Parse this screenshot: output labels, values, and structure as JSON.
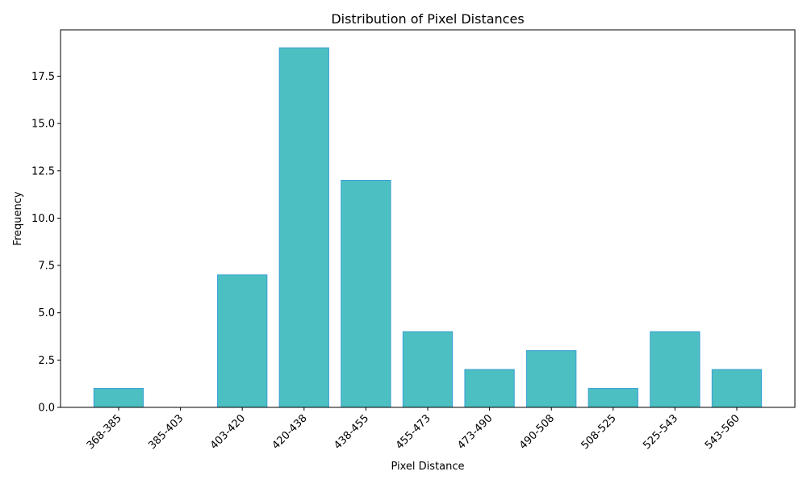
{
  "chart_data": {
    "type": "bar",
    "title": "Distribution of Pixel Distances",
    "xlabel": "Pixel Distance",
    "ylabel": "Frequency",
    "categories": [
      "368-385",
      "385-403",
      "403-420",
      "420-438",
      "438-455",
      "455-473",
      "473-490",
      "490-508",
      "508-525",
      "525-543",
      "543-560"
    ],
    "values": [
      1,
      0,
      7,
      19,
      12,
      4,
      2,
      3,
      1,
      4,
      2
    ],
    "ylim": [
      0,
      19.95
    ],
    "yticks": [
      0.0,
      2.5,
      5.0,
      7.5,
      10.0,
      12.5,
      15.0,
      17.5
    ],
    "ytick_labels": [
      "0.0",
      "2.5",
      "5.0",
      "7.5",
      "10.0",
      "12.5",
      "15.0",
      "17.5"
    ],
    "grid": false,
    "legend": "none",
    "colors": {
      "bar_fill": "#4bbfc1",
      "bar_edge": "#3a9fd6"
    }
  }
}
